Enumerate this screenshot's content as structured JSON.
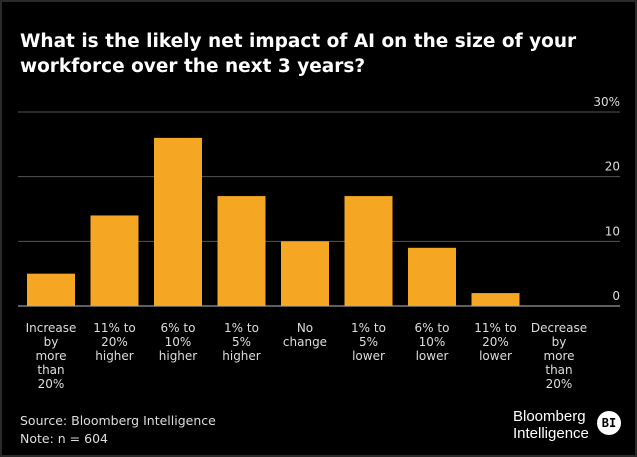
{
  "chart_data": {
    "type": "bar",
    "title": "What is the likely net impact of AI on the size of your workforce over the next 3 years?",
    "categories": [
      [
        "Increase",
        "by",
        "more",
        "than",
        "20%"
      ],
      [
        "11% to",
        "20%",
        "higher"
      ],
      [
        "6% to",
        "10%",
        "higher"
      ],
      [
        "1% to",
        "5%",
        "higher"
      ],
      [
        "No",
        "change"
      ],
      [
        "1% to",
        "5%",
        "lower"
      ],
      [
        "6% to",
        "10%",
        "lower"
      ],
      [
        "11% to",
        "20%",
        "lower"
      ],
      [
        "Decrease",
        "by",
        "more",
        "than",
        "20%"
      ]
    ],
    "values": [
      5,
      14,
      26,
      17,
      10,
      17,
      9,
      2,
      0
    ],
    "ylim": [
      0,
      30
    ],
    "yticks": [
      "0",
      "10",
      "20",
      "30%"
    ],
    "ytick_values": [
      0,
      10,
      20,
      30
    ],
    "grid": true,
    "bar_color": "#f5a623",
    "axis_side": "right"
  },
  "footer": {
    "source": "Source: Bloomberg Intelligence",
    "note": "Note: n = 604"
  },
  "logo": {
    "line1": "Bloomberg",
    "line2": "Intelligence",
    "badge": "BI"
  }
}
